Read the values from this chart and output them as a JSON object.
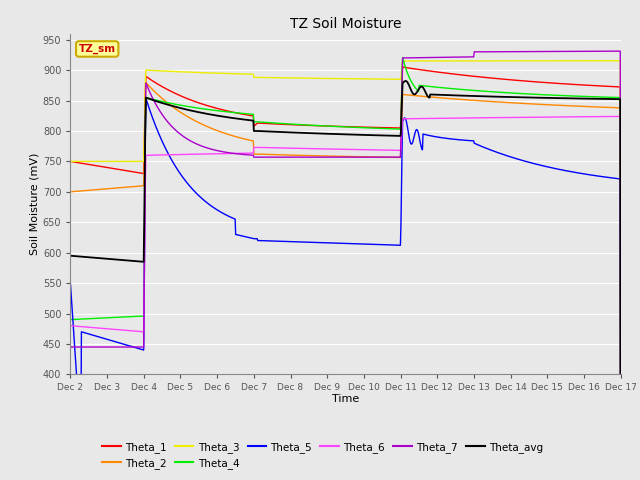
{
  "title": "TZ Soil Moisture",
  "xlabel": "Time",
  "ylabel": "Soil Moisture (mV)",
  "ylim": [
    400,
    960
  ],
  "yticks": [
    400,
    450,
    500,
    550,
    600,
    650,
    700,
    750,
    800,
    850,
    900,
    950
  ],
  "bg_color": "#e8e8e8",
  "legend_box_label": "TZ_sm",
  "legend_box_color": "#ffff99",
  "legend_box_border": "#ccaa00",
  "series": {
    "Theta_1": {
      "color": "#ff0000"
    },
    "Theta_2": {
      "color": "#ff8800"
    },
    "Theta_3": {
      "color": "#eeee00"
    },
    "Theta_4": {
      "color": "#00ee00"
    },
    "Theta_5": {
      "color": "#0000ff"
    },
    "Theta_6": {
      "color": "#ff44ff"
    },
    "Theta_7": {
      "color": "#aa00cc"
    },
    "Theta_avg": {
      "color": "#000000"
    }
  },
  "xtick_days": [
    2,
    3,
    4,
    5,
    6,
    7,
    8,
    9,
    10,
    11,
    12,
    13,
    14,
    15,
    16,
    17
  ],
  "figsize": [
    6.4,
    4.8
  ],
  "dpi": 100
}
